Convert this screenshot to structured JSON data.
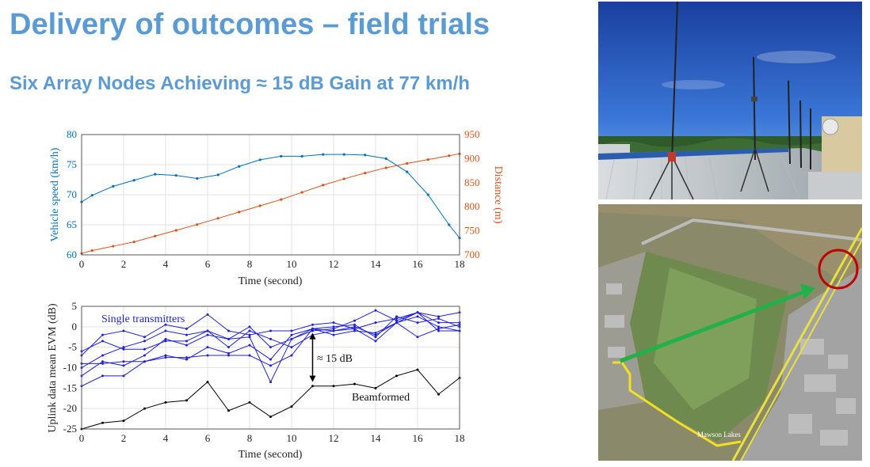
{
  "slide": {
    "title": "Delivery of outcomes – field trials",
    "subtitle": "Six Array Nodes Achieving ≈ 15 dB Gain at 77 km/h"
  },
  "map": {
    "place_label": "Mawson Lakes"
  },
  "colors": {
    "title": "#5b9bd5",
    "speed": "#0072bd",
    "distance": "#d95319",
    "single": "#1f1fe0",
    "beam": "#000000",
    "arrow_green": "#22b04b",
    "circle_red": "#c00000"
  },
  "chart_data": [
    {
      "type": "line",
      "xlabel": "Time (second)",
      "ylabel": "Vehicle speed (km/h)",
      "y2label": "Distance (m)",
      "xlim": [
        0,
        18
      ],
      "ylim": [
        60,
        80
      ],
      "y2lim": [
        700,
        950
      ],
      "xticks": [
        0,
        2,
        4,
        6,
        8,
        10,
        12,
        14,
        16,
        18
      ],
      "yticks": [
        60,
        65,
        70,
        75,
        80
      ],
      "y2ticks": [
        700,
        750,
        800,
        850,
        900,
        950
      ],
      "grid": true,
      "x": [
        0,
        0.5,
        1.5,
        2.5,
        3.5,
        4.5,
        5.5,
        6.5,
        7.5,
        8.5,
        9.5,
        10.5,
        11.5,
        12.5,
        13.5,
        14.5,
        15.5,
        16.5,
        17.5,
        18
      ],
      "series": [
        {
          "axis": "left",
          "color": "#0072bd",
          "values": [
            68.8,
            69.9,
            71.4,
            72.4,
            73.4,
            73.2,
            72.7,
            73.3,
            74.7,
            75.8,
            76.4,
            76.4,
            76.7,
            76.7,
            76.6,
            76,
            73.8,
            70,
            65,
            62.8
          ]
        },
        {
          "axis": "right",
          "color": "#d95319",
          "values": [
            703,
            709,
            718,
            727,
            739,
            751,
            763,
            776,
            789,
            802,
            815,
            830,
            845,
            858,
            870,
            881,
            890,
            898,
            906,
            910
          ]
        }
      ]
    },
    {
      "type": "line",
      "xlabel": "Time (second)",
      "ylabel": "Uplink data mean EVM (dB)",
      "xlim": [
        0,
        18
      ],
      "ylim": [
        -25,
        5
      ],
      "xticks": [
        0,
        2,
        4,
        6,
        8,
        10,
        12,
        14,
        16,
        18
      ],
      "yticks": [
        -25,
        -20,
        -15,
        -10,
        -5,
        0,
        5
      ],
      "grid": true,
      "x": [
        0,
        1,
        2,
        3,
        4,
        5,
        6,
        7,
        8,
        9,
        10,
        11,
        12,
        13,
        14,
        15,
        16,
        17,
        18
      ],
      "series": [
        {
          "group": "single",
          "color": "#1f1fe0",
          "values": [
            -7,
            -2,
            -1,
            -2.5,
            0.5,
            -0.5,
            3,
            -1,
            -2,
            -1,
            -1,
            0.5,
            1,
            -0.5,
            1,
            2,
            3.5,
            2.5,
            3.5
          ]
        },
        {
          "group": "single",
          "color": "#1f1fe0",
          "values": [
            -10,
            -7,
            -5,
            -3.5,
            -1,
            -2,
            -1,
            -3,
            0,
            -5,
            -3,
            -1,
            -0.5,
            1.5,
            4,
            1.5,
            3.5,
            1,
            1
          ]
        },
        {
          "group": "single",
          "color": "#1f1fe0",
          "values": [
            -12,
            -8.5,
            -9.5,
            -7,
            -3,
            -4.5,
            -2,
            -3,
            -2.5,
            -13.5,
            -3,
            -0.5,
            0,
            0.5,
            -2.5,
            2.5,
            1,
            2,
            0
          ]
        },
        {
          "group": "single",
          "color": "#1f1fe0",
          "values": [
            -14.5,
            -12,
            -12,
            -8.5,
            -7,
            -8,
            -5,
            -6.5,
            -4.5,
            -8,
            -2,
            -0.5,
            -2,
            -1,
            -1.5,
            1,
            3.5,
            -1,
            -1
          ]
        },
        {
          "group": "single",
          "color": "#1f1fe0",
          "values": [
            -6,
            -3.5,
            -5.5,
            -5.5,
            -3.5,
            -3.5,
            -1,
            -5,
            -1,
            -3,
            -5,
            -2,
            -1,
            -0.5,
            -3.5,
            1,
            -2.5,
            -0.5,
            0.5
          ]
        },
        {
          "group": "single",
          "color": "#1f1fe0",
          "values": [
            -9,
            -9,
            -8.5,
            -8.5,
            -7.5,
            -7.5,
            -7,
            -7,
            -7,
            -9.5,
            -7,
            -0.5,
            -1,
            0,
            -2,
            1,
            2.5,
            0,
            -1
          ]
        },
        {
          "group": "beam",
          "color": "#000000",
          "values": [
            -25,
            -23.5,
            -23,
            -20,
            -18.5,
            -18,
            -13.5,
            -20.5,
            -18.5,
            -22,
            -19.5,
            -14.5,
            -14.5,
            -14,
            -15,
            -12,
            -10.5,
            -16.5,
            -12.5
          ]
        }
      ],
      "annotations": {
        "single_label": "Single transmitters",
        "beam_label": "Beamformed",
        "gain_label": "≈ 15 dB",
        "gain_x": 11,
        "gain_from": -1.5,
        "gain_to": -13.5
      }
    }
  ]
}
